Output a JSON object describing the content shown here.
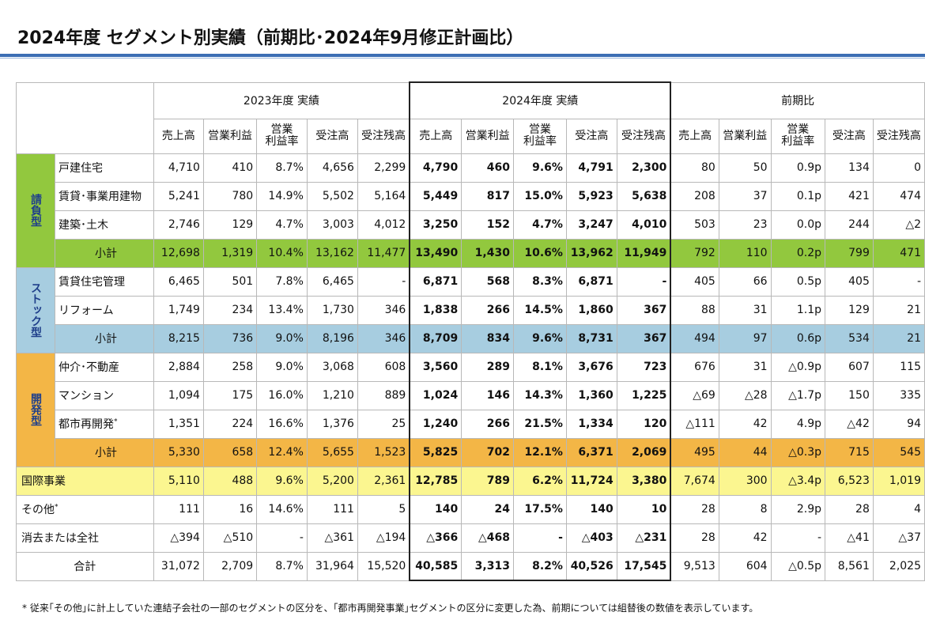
{
  "title": "2024年度 セグメント別実績（前期比･2024年9月修正計画比）",
  "groups": {
    "prev": "2023年度 実績",
    "curr": "2024年度 実績",
    "diff": "前期比"
  },
  "columns": [
    "売上高",
    "営業利益",
    "営業\n利益率",
    "受注高",
    "受注残高"
  ],
  "categories": {
    "contract": "請負型",
    "stock": "ストック型",
    "dev": "開発型"
  },
  "rows": [
    {
      "label": "戸建住宅",
      "prev": [
        "4,710",
        "410",
        "8.7%",
        "4,656",
        "2,299"
      ],
      "curr": [
        "4,790",
        "460",
        "9.6%",
        "4,791",
        "2,300"
      ],
      "diff": [
        "80",
        "50",
        "0.9p",
        "134",
        "0"
      ]
    },
    {
      "label": "賃貸･事業用建物",
      "prev": [
        "5,241",
        "780",
        "14.9%",
        "5,502",
        "5,164"
      ],
      "curr": [
        "5,449",
        "817",
        "15.0%",
        "5,923",
        "5,638"
      ],
      "diff": [
        "208",
        "37",
        "0.1p",
        "421",
        "474"
      ]
    },
    {
      "label": "建築･土木",
      "prev": [
        "2,746",
        "129",
        "4.7%",
        "3,003",
        "4,012"
      ],
      "curr": [
        "3,250",
        "152",
        "4.7%",
        "3,247",
        "4,010"
      ],
      "diff": [
        "503",
        "23",
        "0.0p",
        "244",
        "△2"
      ]
    },
    {
      "label": "小計",
      "prev": [
        "12,698",
        "1,319",
        "10.4%",
        "13,162",
        "11,477"
      ],
      "curr": [
        "13,490",
        "1,430",
        "10.6%",
        "13,962",
        "11,949"
      ],
      "diff": [
        "792",
        "110",
        "0.2p",
        "799",
        "471"
      ]
    },
    {
      "label": "賃貸住宅管理",
      "prev": [
        "6,465",
        "501",
        "7.8%",
        "6,465",
        "-"
      ],
      "curr": [
        "6,871",
        "568",
        "8.3%",
        "6,871",
        "-"
      ],
      "diff": [
        "405",
        "66",
        "0.5p",
        "405",
        "-"
      ]
    },
    {
      "label": "リフォーム",
      "prev": [
        "1,749",
        "234",
        "13.4%",
        "1,730",
        "346"
      ],
      "curr": [
        "1,838",
        "266",
        "14.5%",
        "1,860",
        "367"
      ],
      "diff": [
        "88",
        "31",
        "1.1p",
        "129",
        "21"
      ]
    },
    {
      "label": "小計",
      "prev": [
        "8,215",
        "736",
        "9.0%",
        "8,196",
        "346"
      ],
      "curr": [
        "8,709",
        "834",
        "9.6%",
        "8,731",
        "367"
      ],
      "diff": [
        "494",
        "97",
        "0.6p",
        "534",
        "21"
      ]
    },
    {
      "label": "仲介･不動産",
      "prev": [
        "2,884",
        "258",
        "9.0%",
        "3,068",
        "608"
      ],
      "curr": [
        "3,560",
        "289",
        "8.1%",
        "3,676",
        "723"
      ],
      "diff": [
        "676",
        "31",
        "△0.9p",
        "607",
        "115"
      ]
    },
    {
      "label": "マンション",
      "prev": [
        "1,094",
        "175",
        "16.0%",
        "1,210",
        "889"
      ],
      "curr": [
        "1,024",
        "146",
        "14.3%",
        "1,360",
        "1,225"
      ],
      "diff": [
        "△69",
        "△28",
        "△1.7p",
        "150",
        "335"
      ]
    },
    {
      "label": "都市再開発",
      "mark": "*",
      "prev": [
        "1,351",
        "224",
        "16.6%",
        "1,376",
        "25"
      ],
      "curr": [
        "1,240",
        "266",
        "21.5%",
        "1,334",
        "120"
      ],
      "diff": [
        "△111",
        "42",
        "4.9p",
        "△42",
        "94"
      ]
    },
    {
      "label": "小計",
      "prev": [
        "5,330",
        "658",
        "12.4%",
        "5,655",
        "1,523"
      ],
      "curr": [
        "5,825",
        "702",
        "12.1%",
        "6,371",
        "2,069"
      ],
      "diff": [
        "495",
        "44",
        "△0.3p",
        "715",
        "545"
      ]
    },
    {
      "label": "国際事業",
      "prev": [
        "5,110",
        "488",
        "9.6%",
        "5,200",
        "2,361"
      ],
      "curr": [
        "12,785",
        "789",
        "6.2%",
        "11,724",
        "3,380"
      ],
      "diff": [
        "7,674",
        "300",
        "△3.4p",
        "6,523",
        "1,019"
      ]
    },
    {
      "label": "その他",
      "mark": "*",
      "prev": [
        "111",
        "16",
        "14.6%",
        "111",
        "5"
      ],
      "curr": [
        "140",
        "24",
        "17.5%",
        "140",
        "10"
      ],
      "diff": [
        "28",
        "8",
        "2.9p",
        "28",
        "4"
      ]
    },
    {
      "label": "消去または全社",
      "prev": [
        "△394",
        "△510",
        "-",
        "△361",
        "△194"
      ],
      "curr": [
        "△366",
        "△468",
        "-",
        "△403",
        "△231"
      ],
      "diff": [
        "28",
        "42",
        "-",
        "△41",
        "△37"
      ]
    },
    {
      "label": "合計",
      "prev": [
        "31,072",
        "2,709",
        "8.7%",
        "31,964",
        "15,520"
      ],
      "curr": [
        "40,585",
        "3,313",
        "8.2%",
        "40,526",
        "17,545"
      ],
      "diff": [
        "9,513",
        "604",
        "△0.5p",
        "8,561",
        "2,025"
      ]
    }
  ],
  "footnote": "* 従来｢その他｣に計上していた連結子会社の一部のセグメントの区分を、｢都市再開発事業｣セグメントの区分に変更した為、前期については組替後の数値を表示しています。",
  "colors": {
    "contract": "#92c83e",
    "stock": "#a7cde0",
    "dev": "#f3b646",
    "intl": "#fbf690",
    "rule": "#3c6eb4"
  }
}
